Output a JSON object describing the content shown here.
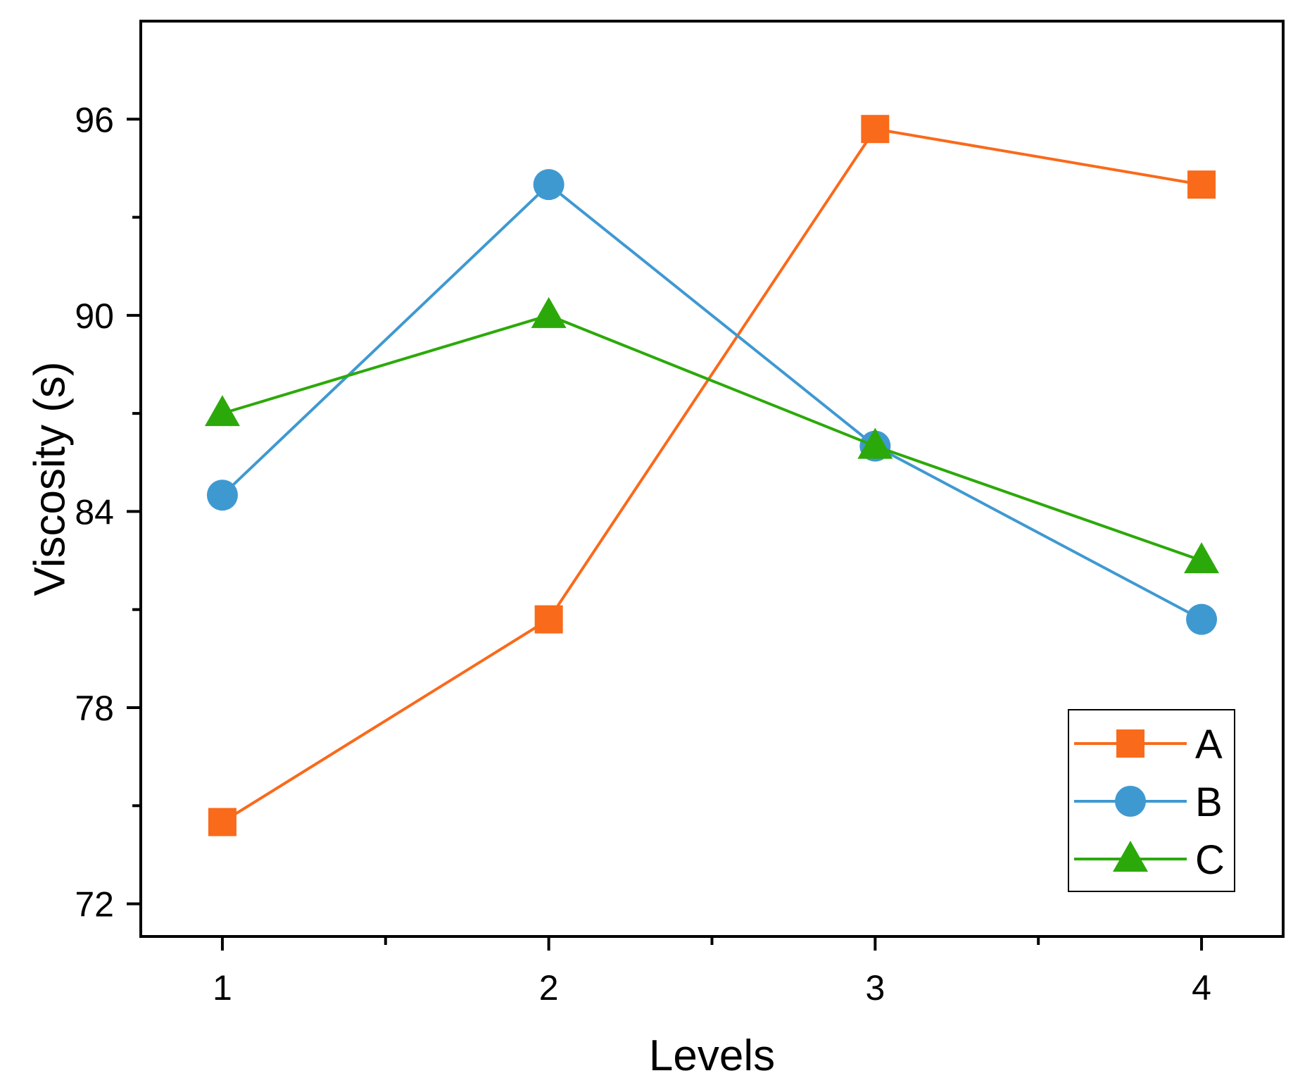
{
  "chart_data": {
    "type": "line",
    "title": "",
    "xlabel": "Levels",
    "ylabel": "Viscosity (s)",
    "x": [
      1,
      2,
      3,
      4
    ],
    "xticks": [
      "1",
      "2",
      "3",
      "4"
    ],
    "yticks": [
      "72",
      "78",
      "84",
      "90",
      "96"
    ],
    "xlim": [
      0.75,
      4.25
    ],
    "ylim": [
      71,
      99
    ],
    "grid": false,
    "legend_position": "bottom-right",
    "series": [
      {
        "name": "A",
        "marker": "square",
        "color": "#f96a1b",
        "values": [
          74.5,
          80.7,
          95.7,
          94.0
        ]
      },
      {
        "name": "B",
        "marker": "circle",
        "color": "#3f99d1",
        "values": [
          84.5,
          94.0,
          86.0,
          80.7
        ]
      },
      {
        "name": "C",
        "marker": "triangle",
        "color": "#2ca90a",
        "values": [
          87.0,
          90.0,
          86.0,
          82.5
        ]
      }
    ]
  }
}
